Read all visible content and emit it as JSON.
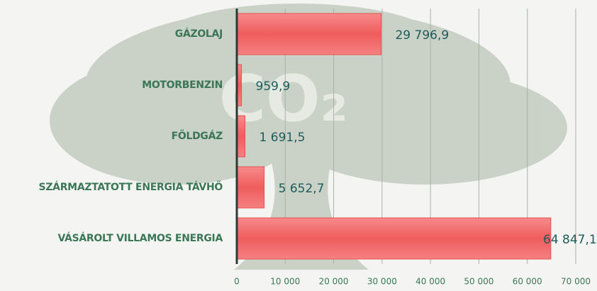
{
  "chart_data": {
    "type": "bar",
    "orientation": "horizontal",
    "background_text": "CO₂",
    "categories": [
      "GÁZOLAJ",
      "MOTORBENZIN",
      "FÖLDGÁZ",
      "SZÁRMAZTATOTT ENERGIA TÁVHŐ",
      "VÁSÁROLT VILLAMOS ENERGIA"
    ],
    "values": [
      29796.9,
      959.9,
      1691.5,
      5652.7,
      64847.1
    ],
    "value_labels": [
      "29 796,9",
      "959,9",
      "1 691,5",
      "5 652,7",
      "64 847,1"
    ],
    "color": "#f06464",
    "xlim": [
      0,
      70000
    ],
    "xticks": [
      0,
      {
        "value": 10000,
        "label": "10 000"
      },
      {
        "value": 20000,
        "label": "20 000"
      },
      {
        "value": 30000,
        "label": "30 000"
      },
      {
        "value": 40000,
        "label": "40 000"
      },
      {
        "value": 50000,
        "label": "50 000"
      },
      {
        "value": 60000,
        "label": "60 000"
      },
      {
        "value": 70000,
        "label": "70 000"
      }
    ],
    "grid": true
  }
}
